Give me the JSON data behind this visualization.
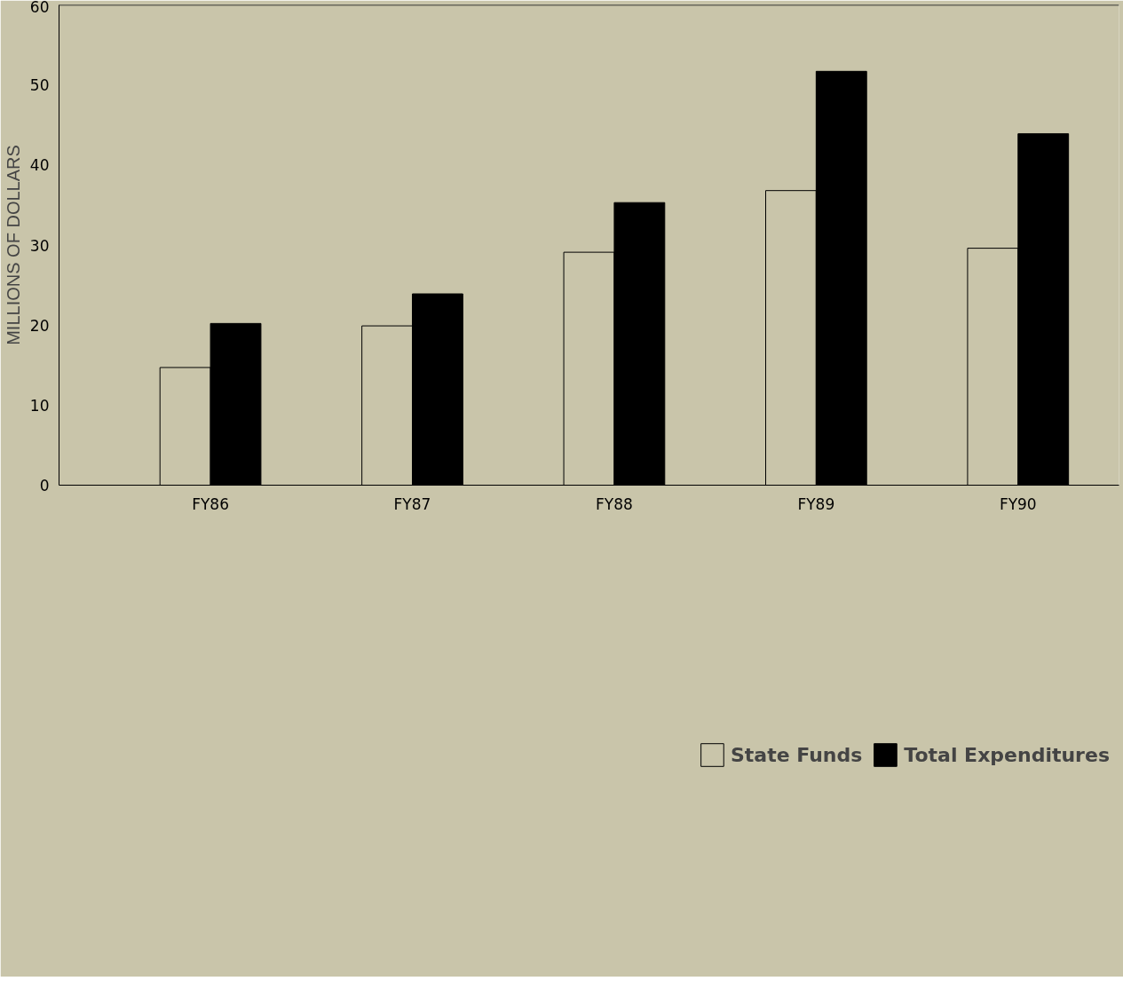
{
  "chart_data": {
    "type": "bar",
    "ylabel": "MILLIONS OF DOLLARS",
    "categories": [
      "FY86",
      "FY87",
      "FY88",
      "FY89",
      "FY90"
    ],
    "series": [
      {
        "name": "State Funds",
        "color": "#c9c5aa",
        "values": [
          14.7,
          19.9,
          29.1,
          36.8,
          29.6
        ]
      },
      {
        "name": "Total Expenditures",
        "color": "#000000",
        "values": [
          20.2,
          23.9,
          35.3,
          51.7,
          43.9
        ]
      }
    ],
    "ylim": [
      0,
      60
    ],
    "yticks": [
      0,
      10,
      20,
      30,
      40,
      50,
      60
    ],
    "grid": false,
    "legend": "bottom"
  }
}
